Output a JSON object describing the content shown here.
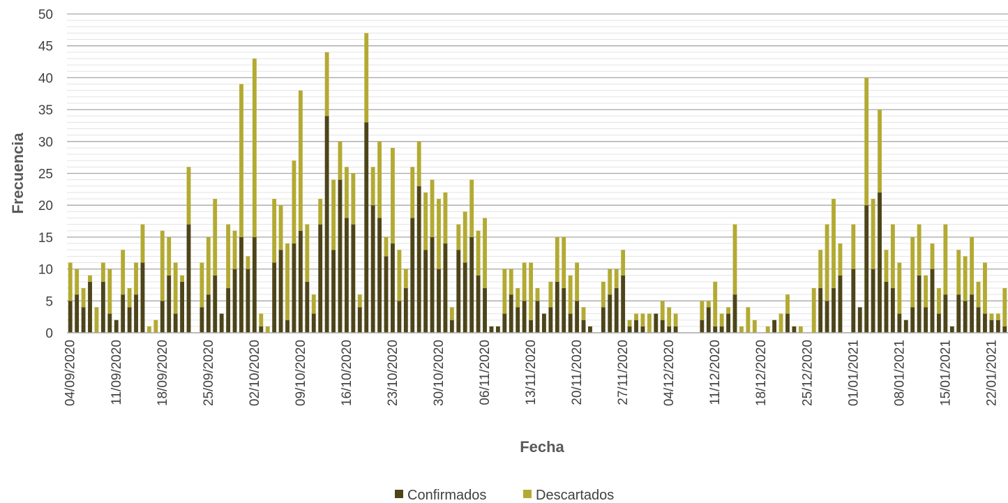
{
  "chart_data": {
    "type": "bar",
    "stacked": true,
    "xlabel": "Fecha",
    "ylabel": "Frecuencia",
    "ylim": [
      0,
      50
    ],
    "y_ticks": [
      0,
      5,
      10,
      15,
      20,
      25,
      30,
      35,
      40,
      45,
      50
    ],
    "grid": "major and minor horizontal gridlines",
    "legend_position": "bottom",
    "start_date": "04/09/2020",
    "x_tick_labels": [
      "04/09/2020",
      "11/09/2020",
      "18/09/2020",
      "25/09/2020",
      "02/10/2020",
      "09/10/2020",
      "16/10/2020",
      "23/10/2020",
      "30/10/2020",
      "06/11/2020",
      "13/11/2020",
      "20/11/2020",
      "27/11/2020",
      "04/12/2020",
      "11/12/2020",
      "18/12/2020",
      "25/12/2020",
      "01/01/2021",
      "08/01/2021",
      "15/01/2021",
      "22/01/2021"
    ],
    "series": [
      {
        "name": "Confirmados",
        "color": "#4d4519",
        "values": [
          5,
          6,
          4,
          8,
          0,
          8,
          3,
          2,
          6,
          4,
          6,
          11,
          0,
          0,
          5,
          9,
          3,
          8,
          17,
          0,
          4,
          6,
          9,
          3,
          7,
          10,
          15,
          10,
          15,
          1,
          0,
          11,
          13,
          2,
          14,
          16,
          8,
          3,
          17,
          34,
          13,
          24,
          18,
          17,
          4,
          33,
          20,
          18,
          12,
          14,
          5,
          7,
          18,
          23,
          13,
          15,
          10,
          14,
          2,
          13,
          11,
          15,
          9,
          7,
          1,
          1,
          3,
          6,
          4,
          5,
          2,
          5,
          3,
          4,
          8,
          7,
          3,
          5,
          2,
          1,
          0,
          4,
          6,
          7,
          9,
          1,
          2,
          1,
          0,
          3,
          2,
          1,
          1,
          0,
          0,
          0,
          2,
          4,
          1,
          1,
          3,
          6,
          0,
          0,
          0,
          0,
          0,
          2,
          0,
          3,
          1,
          0,
          0,
          0,
          7,
          5,
          7,
          9,
          0,
          10,
          4,
          20,
          10,
          22,
          8,
          7,
          3,
          2,
          4,
          9,
          4,
          10,
          3,
          6,
          1,
          6,
          5,
          6,
          4,
          3,
          2,
          2,
          1
        ]
      },
      {
        "name": "Descartados",
        "color": "#b3aa33",
        "values": [
          6,
          4,
          3,
          1,
          4,
          3,
          7,
          0,
          7,
          3,
          5,
          6,
          1,
          2,
          11,
          6,
          8,
          1,
          9,
          0,
          7,
          9,
          12,
          0,
          10,
          6,
          24,
          2,
          28,
          2,
          1,
          10,
          7,
          12,
          13,
          22,
          9,
          3,
          4,
          10,
          11,
          6,
          8,
          8,
          2,
          14,
          6,
          12,
          3,
          15,
          8,
          3,
          8,
          7,
          9,
          9,
          11,
          8,
          2,
          4,
          8,
          9,
          7,
          11,
          0,
          0,
          7,
          4,
          3,
          6,
          9,
          2,
          0,
          4,
          7,
          8,
          6,
          6,
          2,
          0,
          0,
          4,
          4,
          3,
          4,
          1,
          1,
          2,
          3,
          0,
          3,
          3,
          2,
          0,
          0,
          0,
          3,
          1,
          7,
          2,
          1,
          11,
          1,
          4,
          2,
          0,
          1,
          0,
          3,
          3,
          0,
          1,
          0,
          7,
          6,
          12,
          14,
          5,
          0,
          7,
          0,
          20,
          11,
          13,
          5,
          10,
          8,
          0,
          11,
          8,
          5,
          4,
          4,
          11,
          0,
          7,
          7,
          9,
          4,
          8,
          1,
          1,
          6
        ]
      }
    ]
  }
}
